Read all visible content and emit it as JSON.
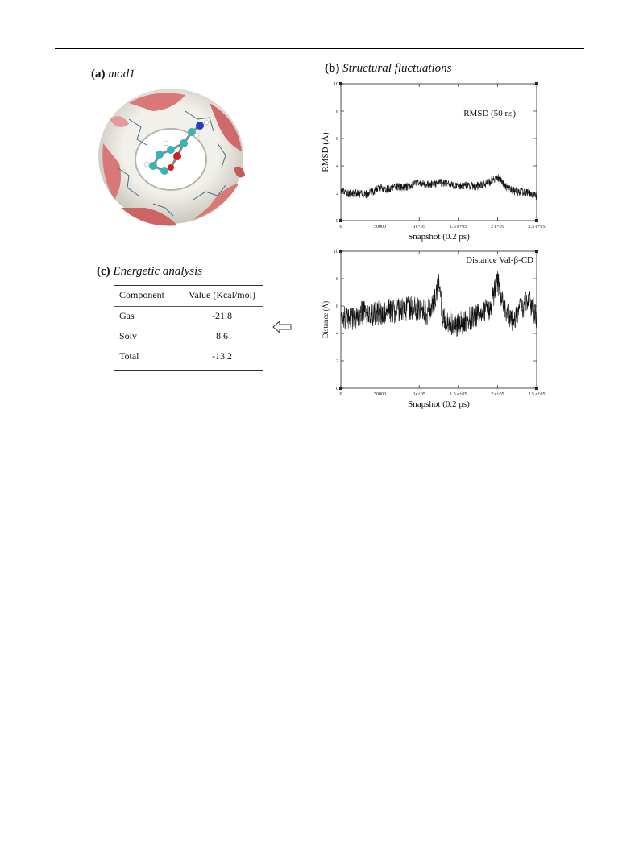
{
  "figure": {
    "panel_a": {
      "letter": "(a)",
      "title": "mod1"
    },
    "panel_b": {
      "letter": "(b)",
      "title": "Structural fluctuations"
    },
    "panel_c": {
      "letter": "(c)",
      "title": "Energetic analysis"
    }
  },
  "table": {
    "headers": [
      "Component",
      "Value (Kcal/mol)"
    ],
    "rows": [
      {
        "component": "Gas",
        "value": "-21.8"
      },
      {
        "component": "Solv",
        "value": "8.6"
      },
      {
        "component": "Total",
        "value": "-13.2"
      }
    ]
  },
  "chart_data": [
    {
      "type": "line",
      "annotation": "RMSD (50 ns)",
      "xlabel": "Snapshot (0.2 ps)",
      "ylabel": "RMSD (Å)",
      "xlim": [
        0,
        250000
      ],
      "ylim": [
        0,
        10
      ],
      "x_ticks": [
        0,
        50000,
        100000,
        150000,
        200000,
        250000
      ],
      "x_tick_labels": [
        "0",
        "50000",
        "1e+05",
        "1.5 e+05",
        "2 e+05",
        "2.5 e+05"
      ],
      "y_ticks": [
        0,
        2,
        4,
        6,
        8,
        10
      ],
      "y_tick_labels": [
        "0",
        "2",
        "4",
        "6",
        "8",
        "10"
      ],
      "series": [
        {
          "x": [
            0,
            10000,
            20000,
            30000,
            40000,
            50000,
            60000,
            70000,
            80000,
            90000,
            100000,
            110000,
            120000,
            130000,
            140000,
            150000,
            160000,
            170000,
            180000,
            190000,
            200000,
            210000,
            220000,
            230000,
            240000,
            250000
          ],
          "y": [
            2.1,
            2.0,
            2.0,
            1.9,
            2.1,
            2.4,
            2.3,
            2.5,
            2.4,
            2.6,
            2.8,
            2.6,
            2.7,
            2.8,
            2.6,
            2.5,
            2.6,
            2.5,
            2.6,
            2.8,
            3.2,
            2.5,
            2.2,
            2.1,
            2.0,
            1.8
          ],
          "noise": 0.3
        }
      ]
    },
    {
      "type": "line",
      "annotation": "Distance Val-β-CD",
      "xlabel": "Snapshot (0.2 ps)",
      "ylabel": "Distance (Å)",
      "xlim": [
        0,
        250000
      ],
      "ylim": [
        0,
        10
      ],
      "x_ticks": [
        0,
        50000,
        100000,
        150000,
        200000,
        250000
      ],
      "x_tick_labels": [
        "0",
        "50000",
        "1e+05",
        "1.5 e+05",
        "2 e+05",
        "2.5 e+05"
      ],
      "y_ticks": [
        0,
        2,
        4,
        6,
        8,
        10
      ],
      "y_tick_labels": [
        "0",
        "2",
        "4",
        "6",
        "8",
        "10"
      ],
      "series": [
        {
          "x": [
            0,
            10000,
            20000,
            30000,
            40000,
            50000,
            60000,
            70000,
            80000,
            90000,
            100000,
            110000,
            120000,
            125000,
            130000,
            140000,
            150000,
            160000,
            170000,
            180000,
            190000,
            200000,
            210000,
            220000,
            230000,
            240000,
            250000
          ],
          "y": [
            5.2,
            5.0,
            5.3,
            5.6,
            5.4,
            5.5,
            5.7,
            5.6,
            5.8,
            5.9,
            5.8,
            5.5,
            6.5,
            7.8,
            5.2,
            4.8,
            4.6,
            5.0,
            5.2,
            5.4,
            5.8,
            7.8,
            5.5,
            5.0,
            5.8,
            6.5,
            5.2
          ],
          "noise": 0.9
        }
      ]
    }
  ]
}
